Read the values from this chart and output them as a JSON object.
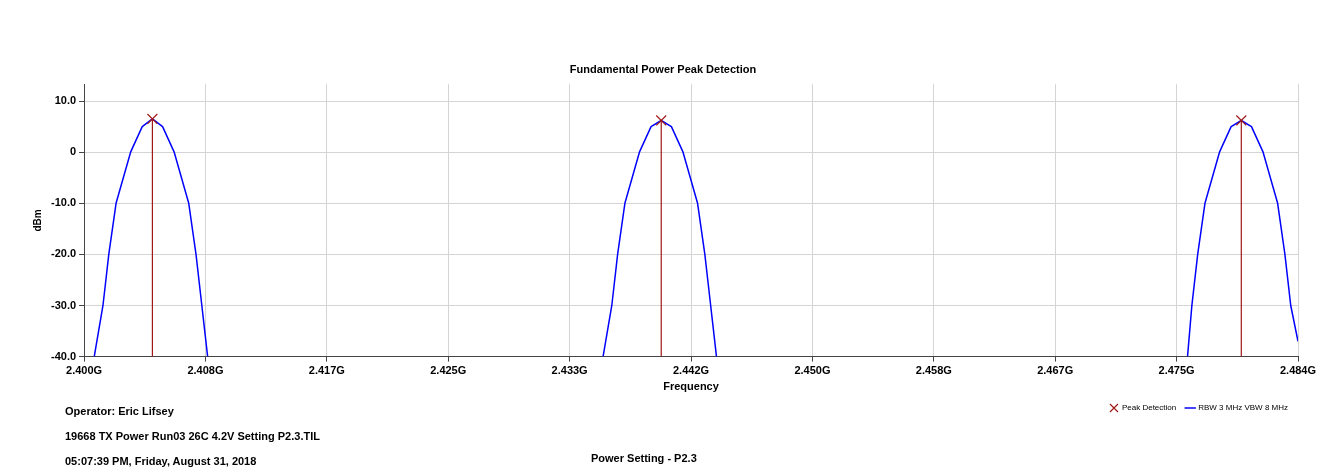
{
  "chart_data": {
    "type": "line",
    "title": "Fundamental Power Peak Detection",
    "xlabel": "Frequency",
    "ylabel": "dBm",
    "xlim": [
      2.4,
      2.4835
    ],
    "xticks": [
      {
        "value": 2.4,
        "label": "2.400G"
      },
      {
        "value": 2.40835,
        "label": "2.408G"
      },
      {
        "value": 2.4167,
        "label": "2.417G"
      },
      {
        "value": 2.42505,
        "label": "2.425G"
      },
      {
        "value": 2.4334,
        "label": "2.433G"
      },
      {
        "value": 2.44175,
        "label": "2.442G"
      },
      {
        "value": 2.4501,
        "label": "2.450G"
      },
      {
        "value": 2.45845,
        "label": "2.458G"
      },
      {
        "value": 2.4668,
        "label": "2.467G"
      },
      {
        "value": 2.47515,
        "label": "2.475G"
      },
      {
        "value": 2.4835,
        "label": "2.484G"
      }
    ],
    "ylim": [
      -40,
      13.3
    ],
    "yticks": [
      {
        "value": -40,
        "label": "-40.0"
      },
      {
        "value": -30,
        "label": "-30.0"
      },
      {
        "value": -20,
        "label": "-20.0"
      },
      {
        "value": -10,
        "label": "-10.0"
      },
      0,
      {
        "value": 10,
        "label": "10.0"
      }
    ],
    "grid": true,
    "legend": "bottom right",
    "series": [
      {
        "type": "scatter",
        "name": "Peak Detection",
        "color": "#a01818",
        "marker": "cross",
        "x": [
          2.4047,
          2.4397,
          2.4796
        ],
        "values": [
          6.5,
          6.2,
          6.2
        ],
        "errors": [
          [
            -40,
            6.5
          ],
          [
            -40,
            6.2
          ],
          [
            -40,
            6.2
          ]
        ]
      },
      {
        "type": "line",
        "name": "RBW 3 MHz VBW 8 MHz",
        "color": "#0000ff",
        "marker": "none",
        "x": [
          2.4007,
          2.4013,
          2.4017,
          2.4022,
          2.4032,
          2.404,
          2.4047,
          2.4054,
          2.4062,
          2.4072,
          2.4077,
          2.4081,
          2.4085,
          2.42,
          2.4357,
          2.4363,
          2.4367,
          2.4372,
          2.4382,
          2.439,
          2.4397,
          2.4404,
          2.4412,
          2.4422,
          2.4427,
          2.4431,
          2.4435,
          2.46,
          2.4759,
          2.4762,
          2.4766,
          2.4771,
          2.4781,
          2.4789,
          2.4796,
          2.4803,
          2.4811,
          2.4821,
          2.4826,
          2.483,
          2.4835
        ],
        "values": [
          -40,
          -30,
          -20,
          -10,
          0,
          5,
          6.5,
          5,
          0,
          -10,
          -20,
          -30,
          -40,
          null,
          -40,
          -30,
          -20,
          -10,
          0,
          5,
          6.2,
          5,
          0,
          -10,
          -20,
          -30,
          -40,
          null,
          -40,
          -30,
          -20,
          -10,
          0,
          5,
          6.2,
          5,
          0,
          -10,
          -20,
          -30,
          -37
        ]
      }
    ],
    "annotations": [
      "Operator: Eric Lifsey",
      "19668 TX Power Run03 26C 4.2V Setting P2.3.TIL",
      "05:07:39 PM, Friday, August 31, 2018",
      "Power Setting - P2.3"
    ]
  }
}
